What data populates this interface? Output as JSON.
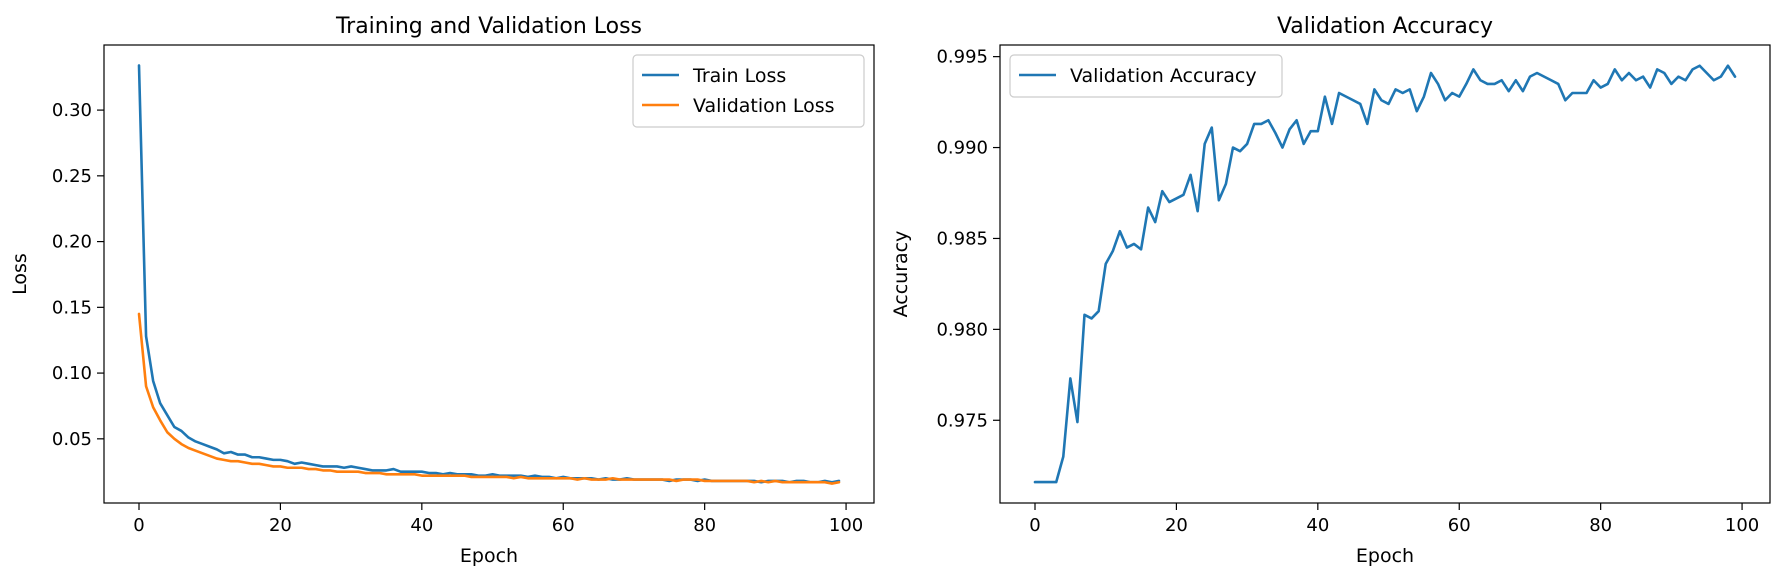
{
  "chart_data": [
    {
      "type": "line",
      "title": "Training and Validation Loss",
      "xlabel": "Epoch",
      "ylabel": "Loss",
      "xlim": [
        -4.95,
        103.95
      ],
      "ylim": [
        0.0012,
        0.3495
      ],
      "xticks": [
        0,
        20,
        40,
        60,
        80,
        100
      ],
      "yticks": [
        0.05,
        0.1,
        0.15,
        0.2,
        0.25,
        0.3
      ],
      "xtick_labels": [
        "0",
        "20",
        "40",
        "60",
        "80",
        "100"
      ],
      "ytick_labels": [
        "0.05",
        "0.10",
        "0.15",
        "0.20",
        "0.25",
        "0.30"
      ],
      "legend": "top-right",
      "grid": false,
      "series": [
        {
          "name": "Train Loss",
          "color": "#1f77b4",
          "x": [
            0,
            1,
            2,
            3,
            4,
            5,
            6,
            7,
            8,
            9,
            10,
            11,
            12,
            13,
            14,
            15,
            16,
            17,
            18,
            19,
            20,
            21,
            22,
            23,
            24,
            25,
            26,
            27,
            28,
            29,
            30,
            31,
            32,
            33,
            34,
            35,
            36,
            37,
            38,
            39,
            40,
            41,
            42,
            43,
            44,
            45,
            46,
            47,
            48,
            49,
            50,
            51,
            52,
            53,
            54,
            55,
            56,
            57,
            58,
            59,
            60,
            61,
            62,
            63,
            64,
            65,
            66,
            67,
            68,
            69,
            70,
            71,
            72,
            73,
            74,
            75,
            76,
            77,
            78,
            79,
            80,
            81,
            82,
            83,
            84,
            85,
            86,
            87,
            88,
            89,
            90,
            91,
            92,
            93,
            94,
            95,
            96,
            97,
            98,
            99
          ],
          "values": [
            0.334,
            0.128,
            0.094,
            0.077,
            0.068,
            0.059,
            0.056,
            0.051,
            0.048,
            0.046,
            0.044,
            0.042,
            0.039,
            0.04,
            0.038,
            0.038,
            0.036,
            0.036,
            0.035,
            0.034,
            0.034,
            0.033,
            0.031,
            0.032,
            0.031,
            0.03,
            0.029,
            0.029,
            0.029,
            0.028,
            0.029,
            0.028,
            0.027,
            0.026,
            0.026,
            0.026,
            0.027,
            0.025,
            0.025,
            0.025,
            0.025,
            0.024,
            0.024,
            0.023,
            0.024,
            0.023,
            0.023,
            0.023,
            0.022,
            0.022,
            0.023,
            0.022,
            0.022,
            0.022,
            0.022,
            0.021,
            0.022,
            0.021,
            0.021,
            0.02,
            0.021,
            0.02,
            0.02,
            0.02,
            0.02,
            0.019,
            0.02,
            0.019,
            0.019,
            0.02,
            0.019,
            0.019,
            0.019,
            0.019,
            0.019,
            0.018,
            0.019,
            0.019,
            0.019,
            0.018,
            0.019,
            0.018,
            0.018,
            0.018,
            0.018,
            0.018,
            0.018,
            0.018,
            0.017,
            0.018,
            0.018,
            0.018,
            0.017,
            0.018,
            0.018,
            0.017,
            0.017,
            0.018,
            0.017,
            0.018
          ]
        },
        {
          "name": "Validation Loss",
          "color": "#ff7f0e",
          "x": [
            0,
            1,
            2,
            3,
            4,
            5,
            6,
            7,
            8,
            9,
            10,
            11,
            12,
            13,
            14,
            15,
            16,
            17,
            18,
            19,
            20,
            21,
            22,
            23,
            24,
            25,
            26,
            27,
            28,
            29,
            30,
            31,
            32,
            33,
            34,
            35,
            36,
            37,
            38,
            39,
            40,
            41,
            42,
            43,
            44,
            45,
            46,
            47,
            48,
            49,
            50,
            51,
            52,
            53,
            54,
            55,
            56,
            57,
            58,
            59,
            60,
            61,
            62,
            63,
            64,
            65,
            66,
            67,
            68,
            69,
            70,
            71,
            72,
            73,
            74,
            75,
            76,
            77,
            78,
            79,
            80,
            81,
            82,
            83,
            84,
            85,
            86,
            87,
            88,
            89,
            90,
            91,
            92,
            93,
            94,
            95,
            96,
            97,
            98,
            99
          ],
          "values": [
            0.145,
            0.09,
            0.074,
            0.064,
            0.055,
            0.05,
            0.046,
            0.043,
            0.041,
            0.039,
            0.037,
            0.035,
            0.034,
            0.033,
            0.033,
            0.032,
            0.031,
            0.031,
            0.03,
            0.029,
            0.029,
            0.028,
            0.028,
            0.028,
            0.027,
            0.027,
            0.026,
            0.026,
            0.025,
            0.025,
            0.025,
            0.025,
            0.024,
            0.024,
            0.024,
            0.023,
            0.023,
            0.023,
            0.023,
            0.023,
            0.022,
            0.022,
            0.022,
            0.022,
            0.022,
            0.022,
            0.022,
            0.021,
            0.021,
            0.021,
            0.021,
            0.021,
            0.021,
            0.02,
            0.021,
            0.02,
            0.02,
            0.02,
            0.02,
            0.02,
            0.02,
            0.02,
            0.019,
            0.02,
            0.019,
            0.019,
            0.019,
            0.02,
            0.019,
            0.019,
            0.019,
            0.019,
            0.019,
            0.019,
            0.019,
            0.019,
            0.018,
            0.019,
            0.019,
            0.019,
            0.018,
            0.018,
            0.018,
            0.018,
            0.018,
            0.018,
            0.018,
            0.017,
            0.018,
            0.017,
            0.018,
            0.017,
            0.017,
            0.017,
            0.017,
            0.017,
            0.017,
            0.017,
            0.016,
            0.017
          ]
        }
      ]
    },
    {
      "type": "line",
      "title": "Validation Accuracy",
      "xlabel": "Epoch",
      "ylabel": "Accuracy",
      "xlim": [
        -4.95,
        103.95
      ],
      "ylim": [
        0.97045,
        0.99564
      ],
      "xticks": [
        0,
        20,
        40,
        60,
        80,
        100
      ],
      "yticks": [
        0.975,
        0.98,
        0.985,
        0.99,
        0.995
      ],
      "xtick_labels": [
        "0",
        "20",
        "40",
        "60",
        "80",
        "100"
      ],
      "ytick_labels": [
        "0.975",
        "0.980",
        "0.985",
        "0.990",
        "0.995"
      ],
      "legend": "top-left",
      "grid": false,
      "series": [
        {
          "name": "Validation Accuracy",
          "color": "#1f77b4",
          "x": [
            0,
            1,
            2,
            3,
            4,
            5,
            6,
            7,
            8,
            9,
            10,
            11,
            12,
            13,
            14,
            15,
            16,
            17,
            18,
            19,
            20,
            21,
            22,
            23,
            24,
            25,
            26,
            27,
            28,
            29,
            30,
            31,
            32,
            33,
            34,
            35,
            36,
            37,
            38,
            39,
            40,
            41,
            42,
            43,
            44,
            45,
            46,
            47,
            48,
            49,
            50,
            51,
            52,
            53,
            54,
            55,
            56,
            57,
            58,
            59,
            60,
            61,
            62,
            63,
            64,
            65,
            66,
            67,
            68,
            69,
            70,
            71,
            72,
            73,
            74,
            75,
            76,
            77,
            78,
            79,
            80,
            81,
            82,
            83,
            84,
            85,
            86,
            87,
            88,
            89,
            90,
            91,
            92,
            93,
            94,
            95,
            96,
            97,
            98,
            99
          ],
          "values": [
            0.9716,
            0.9716,
            0.9716,
            0.9716,
            0.973,
            0.9773,
            0.9749,
            0.9808,
            0.9806,
            0.981,
            0.9836,
            0.9843,
            0.9854,
            0.9845,
            0.9847,
            0.9844,
            0.9867,
            0.9859,
            0.9876,
            0.987,
            0.9872,
            0.9874,
            0.9885,
            0.9865,
            0.9902,
            0.9911,
            0.9871,
            0.988,
            0.99,
            0.9898,
            0.9902,
            0.9913,
            0.9913,
            0.9915,
            0.9908,
            0.99,
            0.991,
            0.9915,
            0.9902,
            0.9909,
            0.9909,
            0.9928,
            0.9913,
            0.993,
            0.9928,
            0.9926,
            0.9924,
            0.9913,
            0.9932,
            0.9926,
            0.9924,
            0.9932,
            0.993,
            0.9932,
            0.992,
            0.9928,
            0.9941,
            0.9935,
            0.9926,
            0.993,
            0.9928,
            0.9935,
            0.9943,
            0.9937,
            0.9935,
            0.9935,
            0.9937,
            0.9931,
            0.9937,
            0.9931,
            0.9939,
            0.9941,
            0.9939,
            0.9937,
            0.9935,
            0.9926,
            0.993,
            0.993,
            0.993,
            0.9937,
            0.9933,
            0.9935,
            0.9943,
            0.9937,
            0.9941,
            0.9937,
            0.9939,
            0.9933,
            0.9943,
            0.9941,
            0.9935,
            0.9939,
            0.9937,
            0.9943,
            0.9945,
            0.9941,
            0.9937,
            0.9939,
            0.9945,
            0.9939
          ]
        }
      ]
    }
  ]
}
